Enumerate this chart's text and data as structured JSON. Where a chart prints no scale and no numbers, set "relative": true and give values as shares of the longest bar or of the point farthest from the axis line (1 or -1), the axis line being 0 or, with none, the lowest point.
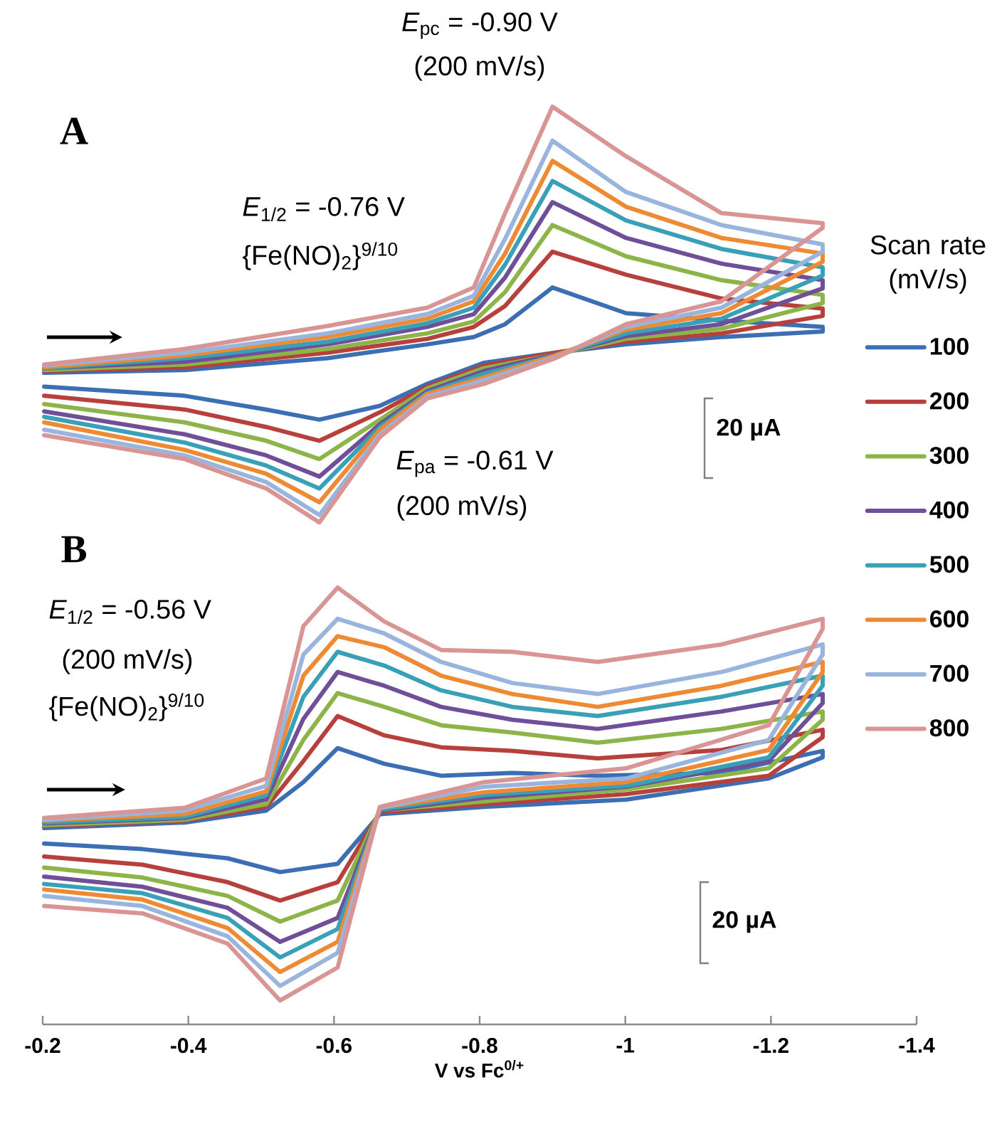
{
  "chart_data": {
    "type": "line",
    "relative": true,
    "xlabel": "V vs Fc$^{0/+}$",
    "xlim": [
      -0.2,
      -1.4
    ],
    "xticks": [
      -0.2,
      -0.4,
      -0.6,
      -0.8,
      -1,
      -1.2,
      -1.4
    ],
    "legend": "right",
    "legend_title": "Scan rate (mV/s)",
    "annotations": [
      "A",
      "B",
      "*E*$_{pc}$ = -0.90 V",
      "(200 mV/s)",
      "*E*$_{1/2}$ = -0.76 V",
      "{Fe(NO)$_{2}$}$^{9/10}$",
      "*E*$_{pa}$ = -0.61 V",
      "(200 mV/s)",
      "20 µA",
      "*E*$_{1/2}$ = -0.56 V",
      "(200 mV/s)",
      "{Fe(NO)$_{2}$}$^{9/10}$",
      "20 µA"
    ],
    "series": [
      {
        "name": "100",
        "color": "#3c6eb4",
        "x": [
          -0.202,
          -0.395,
          -0.591,
          -0.728,
          -0.792,
          -0.835,
          -0.9,
          -1.001,
          -1.132,
          -1.271,
          -1.271,
          -1.132,
          -1.001,
          -0.904,
          -0.806,
          -0.728,
          -0.663,
          -0.58,
          -0.507,
          -0.395,
          -0.202
        ],
        "values": [
          0.71,
          0.713,
          0.726,
          0.741,
          0.749,
          0.763,
          0.803,
          0.775,
          0.767,
          0.76,
          0.755,
          0.749,
          0.741,
          0.732,
          0.721,
          0.698,
          0.674,
          0.659,
          0.67,
          0.685,
          0.695
        ]
      },
      {
        "name": "200",
        "color": "#b8403c",
        "x": [
          -0.202,
          -0.395,
          -0.591,
          -0.728,
          -0.792,
          -0.835,
          -0.9,
          -1.001,
          -1.132,
          -1.271,
          -1.271,
          -1.132,
          -1.001,
          -0.904,
          -0.806,
          -0.728,
          -0.663,
          -0.58,
          -0.507,
          -0.395,
          -0.202
        ],
        "values": [
          0.712,
          0.716,
          0.732,
          0.747,
          0.76,
          0.783,
          0.842,
          0.817,
          0.791,
          0.78,
          0.772,
          0.753,
          0.744,
          0.732,
          0.718,
          0.695,
          0.667,
          0.636,
          0.651,
          0.67,
          0.685
        ]
      },
      {
        "name": "300",
        "color": "#8db449",
        "x": [
          -0.202,
          -0.395,
          -0.591,
          -0.728,
          -0.792,
          -0.835,
          -0.9,
          -1.001,
          -1.132,
          -1.271,
          -1.271,
          -1.132,
          -1.001,
          -0.904,
          -0.806,
          -0.728,
          -0.663,
          -0.58,
          -0.507,
          -0.395,
          -0.202
        ],
        "values": [
          0.713,
          0.719,
          0.736,
          0.753,
          0.766,
          0.798,
          0.871,
          0.837,
          0.811,
          0.795,
          0.786,
          0.758,
          0.747,
          0.73,
          0.715,
          0.693,
          0.659,
          0.616,
          0.636,
          0.656,
          0.676
        ]
      },
      {
        "name": "400",
        "color": "#6f4f98",
        "x": [
          -0.202,
          -0.395,
          -0.591,
          -0.728,
          -0.792,
          -0.835,
          -0.9,
          -1.001,
          -1.132,
          -1.271,
          -1.271,
          -1.132,
          -1.001,
          -0.904,
          -0.806,
          -0.728,
          -0.663,
          -0.58,
          -0.507,
          -0.395,
          -0.202
        ],
        "values": [
          0.715,
          0.722,
          0.741,
          0.76,
          0.774,
          0.814,
          0.896,
          0.857,
          0.829,
          0.811,
          0.802,
          0.763,
          0.75,
          0.73,
          0.712,
          0.69,
          0.654,
          0.597,
          0.62,
          0.643,
          0.668
        ]
      },
      {
        "name": "500",
        "color": "#3aa0b8",
        "x": [
          -0.202,
          -0.395,
          -0.591,
          -0.728,
          -0.792,
          -0.835,
          -0.9,
          -1.001,
          -1.132,
          -1.271,
          -1.271,
          -1.132,
          -1.001,
          -0.904,
          -0.806,
          -0.728,
          -0.663,
          -0.58,
          -0.507,
          -0.395,
          -0.202
        ],
        "values": [
          0.715,
          0.726,
          0.744,
          0.764,
          0.781,
          0.828,
          0.919,
          0.876,
          0.845,
          0.825,
          0.816,
          0.769,
          0.753,
          0.729,
          0.709,
          0.688,
          0.651,
          0.584,
          0.609,
          0.634,
          0.662
        ]
      },
      {
        "name": "600",
        "color": "#ee8a34",
        "x": [
          -0.202,
          -0.395,
          -0.591,
          -0.728,
          -0.792,
          -0.835,
          -0.9,
          -1.001,
          -1.132,
          -1.271,
          -1.271,
          -1.132,
          -1.001,
          -0.904,
          -0.806,
          -0.728,
          -0.663,
          -0.58,
          -0.507,
          -0.395,
          -0.202
        ],
        "values": [
          0.716,
          0.729,
          0.749,
          0.769,
          0.788,
          0.84,
          0.941,
          0.891,
          0.857,
          0.84,
          0.831,
          0.775,
          0.757,
          0.729,
          0.705,
          0.687,
          0.648,
          0.569,
          0.6,
          0.626,
          0.656
        ]
      },
      {
        "name": "700",
        "color": "#9ab5dd",
        "x": [
          -0.202,
          -0.395,
          -0.591,
          -0.728,
          -0.792,
          -0.835,
          -0.9,
          -1.001,
          -1.132,
          -1.271,
          -1.271,
          -1.132,
          -1.001,
          -0.904,
          -0.806,
          -0.728,
          -0.663,
          -0.58,
          -0.507,
          -0.395,
          -0.202
        ],
        "values": [
          0.718,
          0.732,
          0.753,
          0.774,
          0.794,
          0.856,
          0.963,
          0.907,
          0.871,
          0.85,
          0.842,
          0.781,
          0.76,
          0.727,
          0.702,
          0.684,
          0.643,
          0.555,
          0.591,
          0.62,
          0.648
        ]
      },
      {
        "name": "800",
        "color": "#d99494",
        "x": [
          -0.202,
          -0.395,
          -0.591,
          -0.728,
          -0.792,
          -0.835,
          -0.9,
          -1.001,
          -1.132,
          -1.271,
          -1.271,
          -1.132,
          -1.001,
          -0.904,
          -0.806,
          -0.728,
          -0.663,
          -0.58,
          -0.507,
          -0.395,
          -0.202
        ],
        "values": [
          0.719,
          0.736,
          0.761,
          0.781,
          0.803,
          0.884,
          1,
          0.946,
          0.884,
          0.873,
          0.868,
          0.788,
          0.763,
          0.726,
          0.698,
          0.682,
          0.64,
          0.547,
          0.584,
          0.616,
          0.642
        ]
      },
      {
        "color": "#3c6eb4",
        "x": [
          -0.202,
          -0.395,
          -0.507,
          -0.558,
          -0.605,
          -0.669,
          -0.747,
          -0.845,
          -0.962,
          -1.132,
          -1.271,
          -1.271,
          -1.197,
          -1.001,
          -0.806,
          -0.663,
          -0.605,
          -0.526,
          -0.454,
          -0.337,
          -0.202
        ],
        "values": [
          0.214,
          0.22,
          0.233,
          0.264,
          0.301,
          0.284,
          0.271,
          0.274,
          0.271,
          0.274,
          0.298,
          0.291,
          0.268,
          0.245,
          0.237,
          0.229,
          0.175,
          0.166,
          0.181,
          0.191,
          0.197
        ]
      },
      {
        "color": "#b8403c",
        "x": [
          -0.202,
          -0.395,
          -0.507,
          -0.558,
          -0.605,
          -0.669,
          -0.747,
          -0.845,
          -0.962,
          -1.132,
          -1.271,
          -1.271,
          -1.197,
          -1.001,
          -0.806,
          -0.663,
          -0.605,
          -0.526,
          -0.454,
          -0.337,
          -0.202
        ],
        "values": [
          0.216,
          0.222,
          0.237,
          0.287,
          0.336,
          0.315,
          0.302,
          0.298,
          0.29,
          0.299,
          0.321,
          0.313,
          0.271,
          0.251,
          0.24,
          0.231,
          0.155,
          0.135,
          0.155,
          0.174,
          0.183
        ]
      },
      {
        "color": "#8db449",
        "x": [
          -0.202,
          -0.395,
          -0.507,
          -0.558,
          -0.605,
          -0.669,
          -0.747,
          -0.845,
          -0.962,
          -1.132,
          -1.271,
          -1.271,
          -1.197,
          -1.001,
          -0.806,
          -0.663,
          -0.605,
          -0.526,
          -0.454,
          -0.337,
          -0.202
        ],
        "values": [
          0.217,
          0.223,
          0.24,
          0.31,
          0.361,
          0.346,
          0.326,
          0.318,
          0.307,
          0.322,
          0.341,
          0.332,
          0.279,
          0.256,
          0.243,
          0.233,
          0.135,
          0.112,
          0.14,
          0.16,
          0.171
        ]
      },
      {
        "color": "#6f4f98",
        "x": [
          -0.202,
          -0.395,
          -0.507,
          -0.558,
          -0.605,
          -0.669,
          -0.747,
          -0.845,
          -0.962,
          -1.132,
          -1.271,
          -1.271,
          -1.197,
          -1.001,
          -0.806,
          -0.663,
          -0.605,
          -0.526,
          -0.454,
          -0.337,
          -0.202
        ],
        "values": [
          0.219,
          0.225,
          0.245,
          0.333,
          0.384,
          0.369,
          0.346,
          0.332,
          0.322,
          0.341,
          0.36,
          0.35,
          0.287,
          0.259,
          0.247,
          0.233,
          0.116,
          0.09,
          0.127,
          0.15,
          0.161
        ]
      },
      {
        "color": "#3aa0b8",
        "x": [
          -0.202,
          -0.395,
          -0.507,
          -0.558,
          -0.605,
          -0.669,
          -0.747,
          -0.845,
          -0.962,
          -1.132,
          -1.271,
          -1.271,
          -1.197,
          -1.001,
          -0.806,
          -0.663,
          -0.605,
          -0.526,
          -0.454,
          -0.337,
          -0.202
        ],
        "values": [
          0.22,
          0.226,
          0.25,
          0.357,
          0.406,
          0.391,
          0.364,
          0.346,
          0.336,
          0.357,
          0.38,
          0.369,
          0.291,
          0.26,
          0.25,
          0.234,
          0.104,
          0.073,
          0.116,
          0.143,
          0.153
        ]
      },
      {
        "color": "#ee8a34",
        "x": [
          -0.202,
          -0.395,
          -0.507,
          -0.558,
          -0.605,
          -0.669,
          -0.747,
          -0.845,
          -0.962,
          -1.132,
          -1.271,
          -1.271,
          -1.197,
          -1.001,
          -0.806,
          -0.663,
          -0.605,
          -0.526,
          -0.454,
          -0.337,
          -0.202
        ],
        "values": [
          0.222,
          0.229,
          0.254,
          0.38,
          0.423,
          0.411,
          0.38,
          0.36,
          0.346,
          0.369,
          0.395,
          0.384,
          0.299,
          0.264,
          0.253,
          0.236,
          0.09,
          0.057,
          0.105,
          0.136,
          0.147
        ]
      },
      {
        "color": "#9ab5dd",
        "x": [
          -0.202,
          -0.395,
          -0.507,
          -0.558,
          -0.605,
          -0.669,
          -0.747,
          -0.845,
          -0.962,
          -1.132,
          -1.271,
          -1.271,
          -1.197,
          -1.001,
          -0.806,
          -0.663,
          -0.605,
          -0.526,
          -0.454,
          -0.337,
          -0.202
        ],
        "values": [
          0.223,
          0.233,
          0.26,
          0.403,
          0.442,
          0.426,
          0.395,
          0.372,
          0.36,
          0.384,
          0.414,
          0.403,
          0.31,
          0.268,
          0.259,
          0.236,
          0.078,
          0.042,
          0.096,
          0.129,
          0.14
        ]
      },
      {
        "color": "#d99494",
        "x": [
          -0.202,
          -0.395,
          -0.507,
          -0.558,
          -0.605,
          -0.669,
          -0.747,
          -0.845,
          -0.962,
          -1.132,
          -1.271,
          -1.271,
          -1.197,
          -1.001,
          -0.806,
          -0.663,
          -0.605,
          -0.526,
          -0.454,
          -0.337,
          -0.202
        ],
        "values": [
          0.225,
          0.236,
          0.268,
          0.434,
          0.476,
          0.439,
          0.408,
          0.406,
          0.395,
          0.414,
          0.442,
          0.431,
          0.326,
          0.279,
          0.264,
          0.237,
          0.062,
          0.026,
          0.088,
          0.121,
          0.129
        ]
      }
    ]
  }
}
